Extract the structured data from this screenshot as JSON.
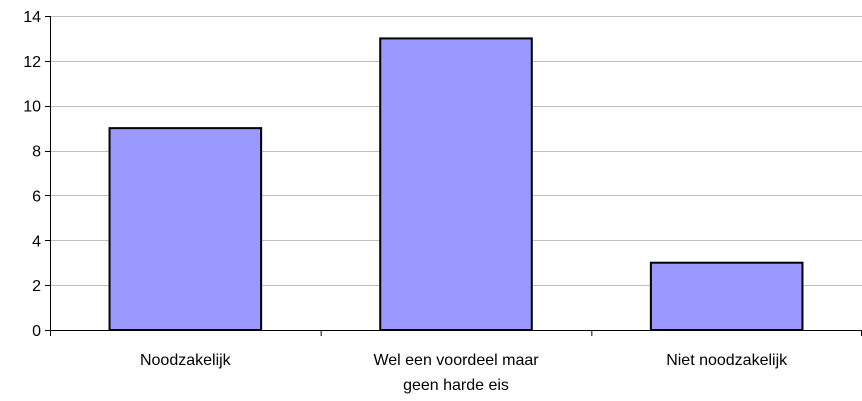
{
  "chart_data": {
    "type": "bar",
    "categories": [
      [
        "Noodzakelijk"
      ],
      [
        "Wel een voordeel maar",
        "geen harde eis"
      ],
      [
        "Niet noodzakelijk"
      ]
    ],
    "values": [
      9,
      13,
      3
    ],
    "ylim": [
      0,
      14
    ],
    "yticks": [
      0,
      2,
      4,
      6,
      8,
      10,
      12,
      14
    ],
    "grid": true,
    "legend": "none",
    "bar_color": "#9999ff",
    "bar_edge_color": "#000000",
    "grid_color": "#c0c0c0"
  }
}
